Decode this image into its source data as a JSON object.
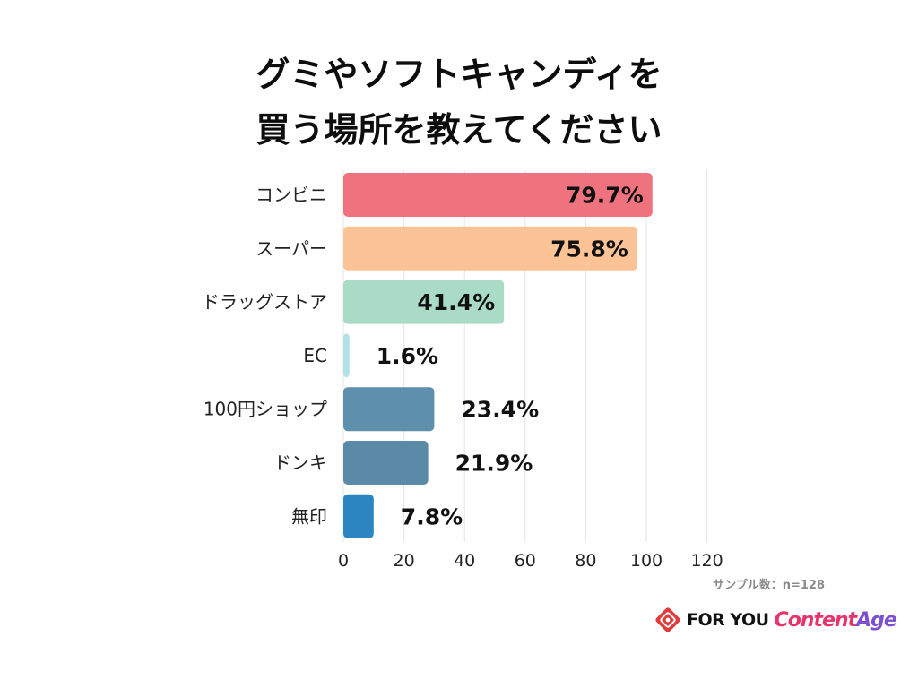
{
  "title_lines": [
    "グミやソフトキャンディを",
    "買う場所を教えてください"
  ],
  "sample_note": "サンプル数：n=128",
  "logo": {
    "foryou": "FOR YOU",
    "content_part1": "Content",
    "content_part2": "Age",
    "mark_color": "#e03a3a"
  },
  "chart_data": {
    "type": "bar",
    "orientation": "horizontal",
    "title": "グミやソフトキャンディを買う場所を教えてください",
    "categories": [
      "コンビニ",
      "スーパー",
      "ドラッグストア",
      "EC",
      "100円ショップ",
      "ドンキ",
      "無印"
    ],
    "values": [
      79.7,
      75.8,
      41.4,
      1.6,
      23.4,
      21.9,
      7.8
    ],
    "value_labels": [
      "79.7%",
      "75.8%",
      "41.4%",
      "1.6%",
      "23.4%",
      "21.9%",
      "7.8%"
    ],
    "bar_lengths": [
      102,
      97,
      53,
      2,
      30,
      28,
      10
    ],
    "colors": [
      "#ef737f",
      "#fcc396",
      "#a9dbc7",
      "#b2e1e8",
      "#5e8fab",
      "#5a8aa6",
      "#2a85c0"
    ],
    "xlim": [
      0,
      120
    ],
    "xticks": [
      0,
      20,
      40,
      60,
      80,
      100,
      120
    ],
    "grid": true,
    "xlabel": "",
    "ylabel": ""
  }
}
